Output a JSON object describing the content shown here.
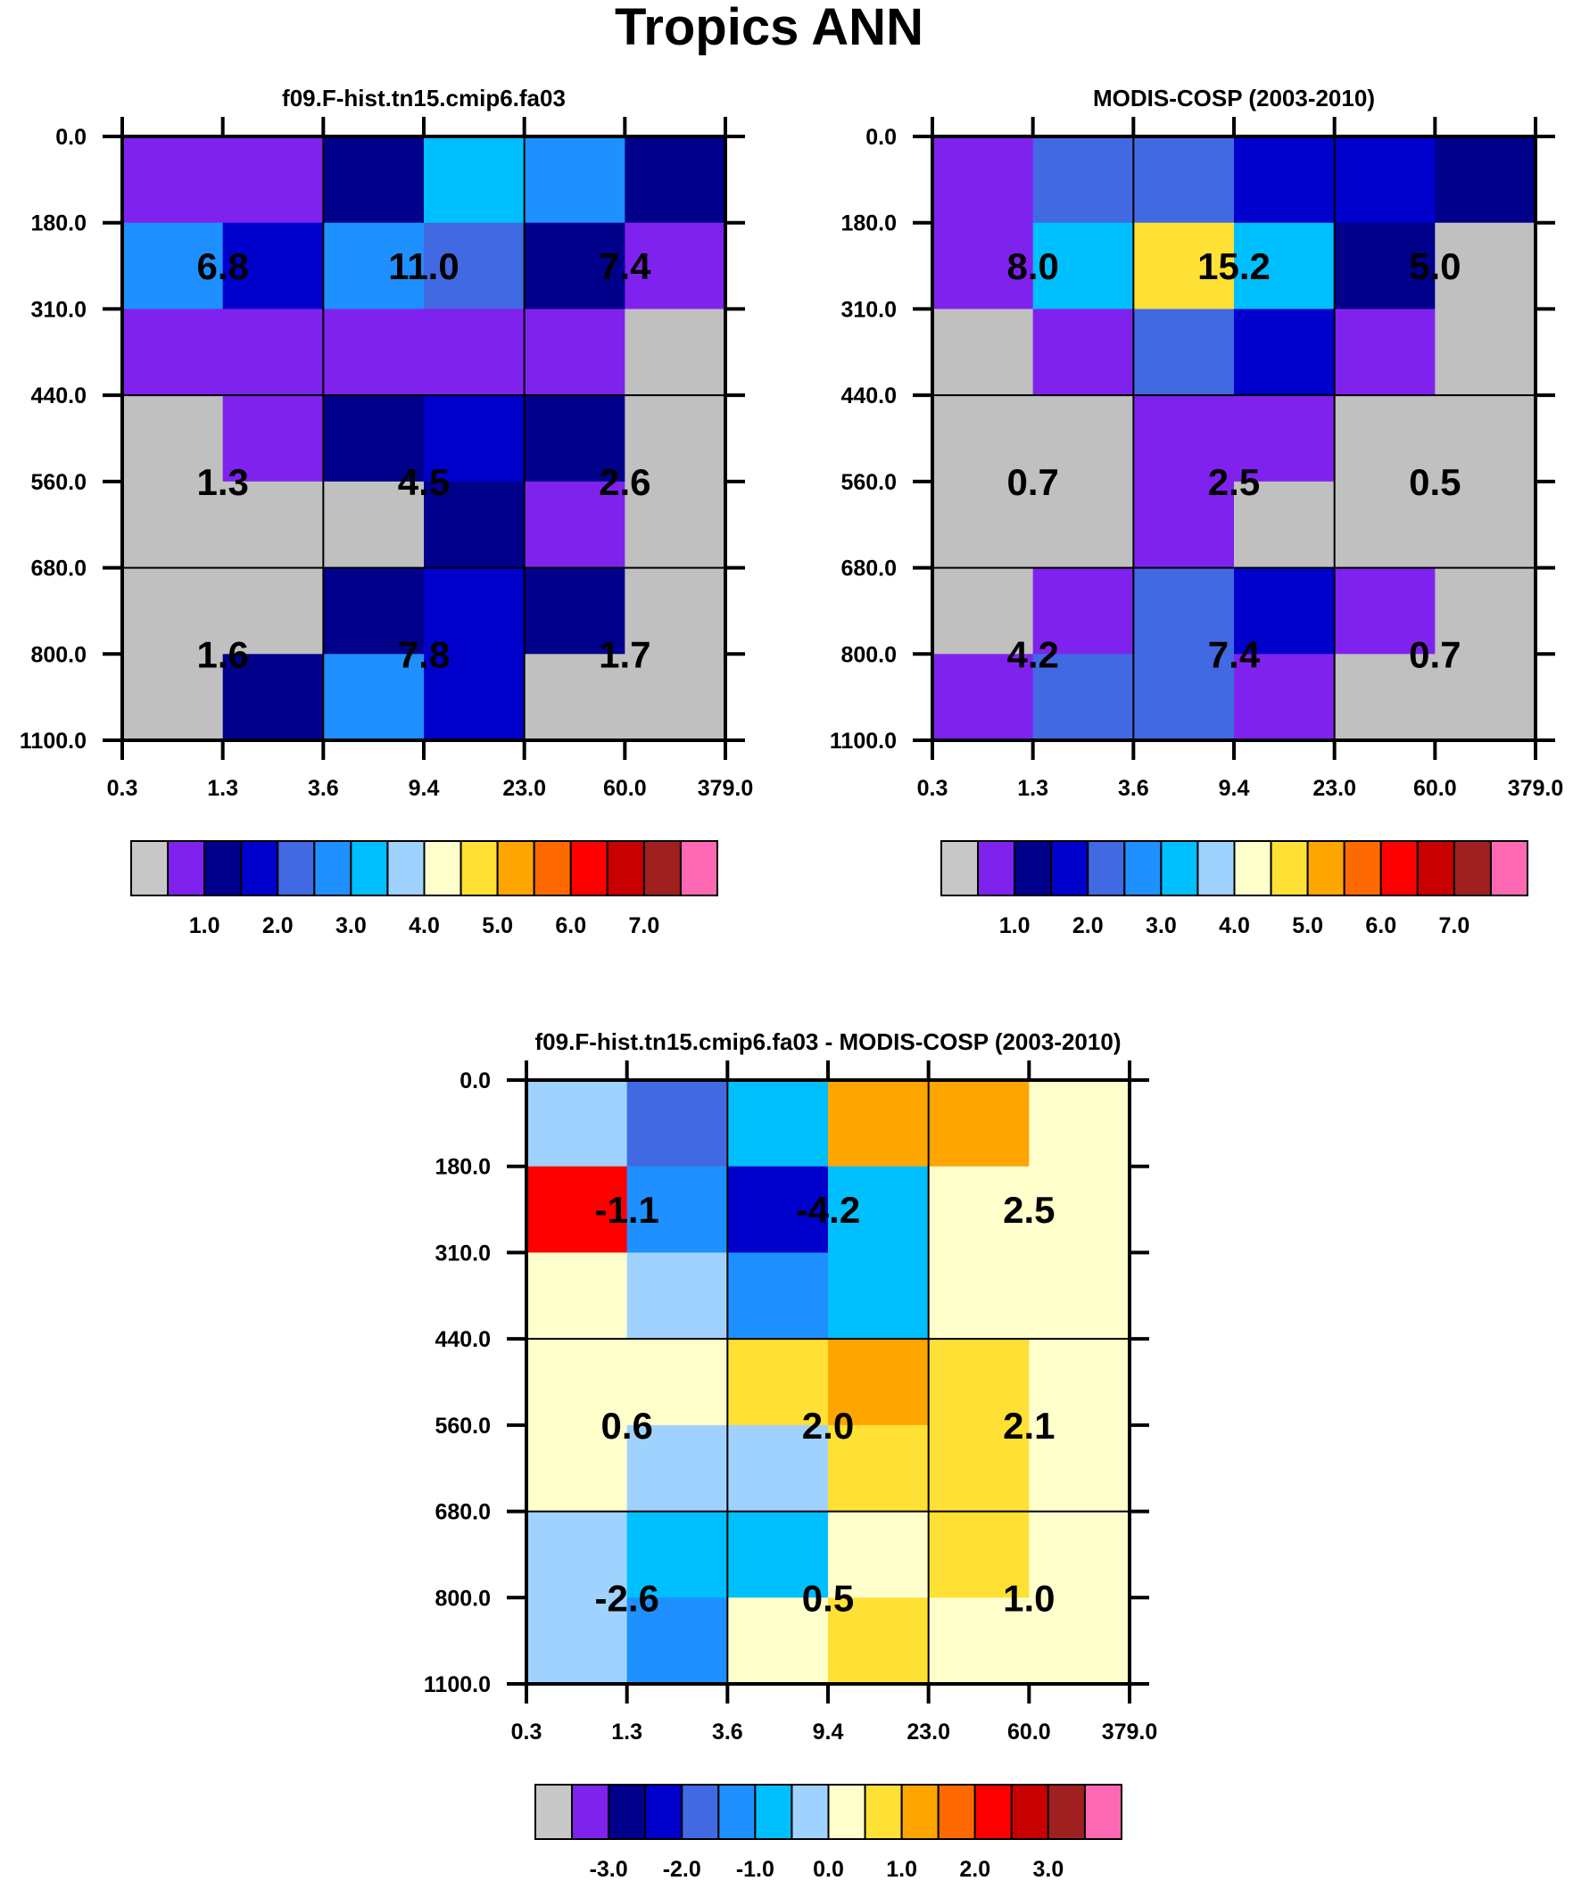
{
  "title": "Tropics ANN",
  "chart_data": [
    {
      "type": "heatmap",
      "title": "f09.F-hist.tn15.cmip6.fa03",
      "xticks": [
        "0.3",
        "1.3",
        "3.6",
        "9.4",
        "23.0",
        "60.0",
        "379.0"
      ],
      "yticks": [
        "0.0",
        "180.0",
        "310.0",
        "440.0",
        "560.0",
        "680.0",
        "800.0",
        "1100.0"
      ],
      "cell_color_index": [
        [
          1,
          1,
          2,
          6,
          5,
          2
        ],
        [
          5,
          3,
          5,
          4,
          2,
          1
        ],
        [
          1,
          1,
          1,
          1,
          1,
          0
        ],
        [
          0,
          1,
          2,
          3,
          2,
          0
        ],
        [
          0,
          0,
          0,
          2,
          1,
          0
        ],
        [
          0,
          0,
          2,
          3,
          2,
          0
        ],
        [
          0,
          2,
          5,
          3,
          0,
          0
        ]
      ],
      "block_values": [
        [
          "6.8",
          "11.0",
          "7.4"
        ],
        [
          "1.3",
          "4.5",
          "2.6"
        ],
        [
          "1.6",
          "7.8",
          "1.7"
        ]
      ],
      "colorbar_labels": [
        "1.0",
        "2.0",
        "3.0",
        "4.0",
        "5.0",
        "6.0",
        "7.0"
      ]
    },
    {
      "type": "heatmap",
      "title": "MODIS-COSP (2003-2010)",
      "xticks": [
        "0.3",
        "1.3",
        "3.6",
        "9.4",
        "23.0",
        "60.0",
        "379.0"
      ],
      "yticks": [
        "0.0",
        "180.0",
        "310.0",
        "440.0",
        "560.0",
        "680.0",
        "800.0",
        "1100.0"
      ],
      "cell_color_index": [
        [
          1,
          4,
          4,
          3,
          3,
          2
        ],
        [
          1,
          6,
          9,
          6,
          2,
          0
        ],
        [
          0,
          1,
          4,
          3,
          1,
          0
        ],
        [
          0,
          0,
          1,
          1,
          0,
          0
        ],
        [
          0,
          0,
          1,
          0,
          0,
          0
        ],
        [
          0,
          1,
          4,
          3,
          1,
          0
        ],
        [
          1,
          4,
          4,
          1,
          0,
          0
        ]
      ],
      "block_values": [
        [
          "8.0",
          "15.2",
          "5.0"
        ],
        [
          "0.7",
          "2.5",
          "0.5"
        ],
        [
          "4.2",
          "7.4",
          "0.7"
        ]
      ],
      "colorbar_labels": [
        "1.0",
        "2.0",
        "3.0",
        "4.0",
        "5.0",
        "6.0",
        "7.0"
      ]
    },
    {
      "type": "heatmap",
      "title": "f09.F-hist.tn15.cmip6.fa03 - MODIS-COSP (2003-2010)",
      "xticks": [
        "0.3",
        "1.3",
        "3.6",
        "9.4",
        "23.0",
        "60.0",
        "379.0"
      ],
      "yticks": [
        "0.0",
        "180.0",
        "310.0",
        "440.0",
        "560.0",
        "680.0",
        "800.0",
        "1100.0"
      ],
      "cell_color_index": [
        [
          7,
          4,
          6,
          10,
          10,
          8
        ],
        [
          12,
          5,
          3,
          6,
          8,
          8
        ],
        [
          8,
          7,
          5,
          6,
          8,
          8
        ],
        [
          8,
          8,
          9,
          10,
          9,
          8
        ],
        [
          8,
          7,
          7,
          9,
          9,
          8
        ],
        [
          7,
          6,
          6,
          8,
          9,
          8
        ],
        [
          7,
          5,
          8,
          9,
          8,
          8
        ]
      ],
      "block_values": [
        [
          "-1.1",
          "-4.2",
          "2.5"
        ],
        [
          "0.6",
          "2.0",
          "2.1"
        ],
        [
          "-2.6",
          "0.5",
          "1.0"
        ]
      ],
      "colorbar_labels": [
        "-3.0",
        "-2.0",
        "-1.0",
        "0.0",
        "1.0",
        "2.0",
        "3.0"
      ]
    }
  ],
  "palette": [
    "#c0c0c0",
    "#8022ee",
    "#00008b",
    "#0000cd",
    "#4169e1",
    "#1e90ff",
    "#00bfff",
    "#a0d2ff",
    "#ffffcc",
    "#ffe034",
    "#ffa500",
    "#ff6a00",
    "#ff0000",
    "#c80000",
    "#a02020",
    "#ff69b4"
  ]
}
